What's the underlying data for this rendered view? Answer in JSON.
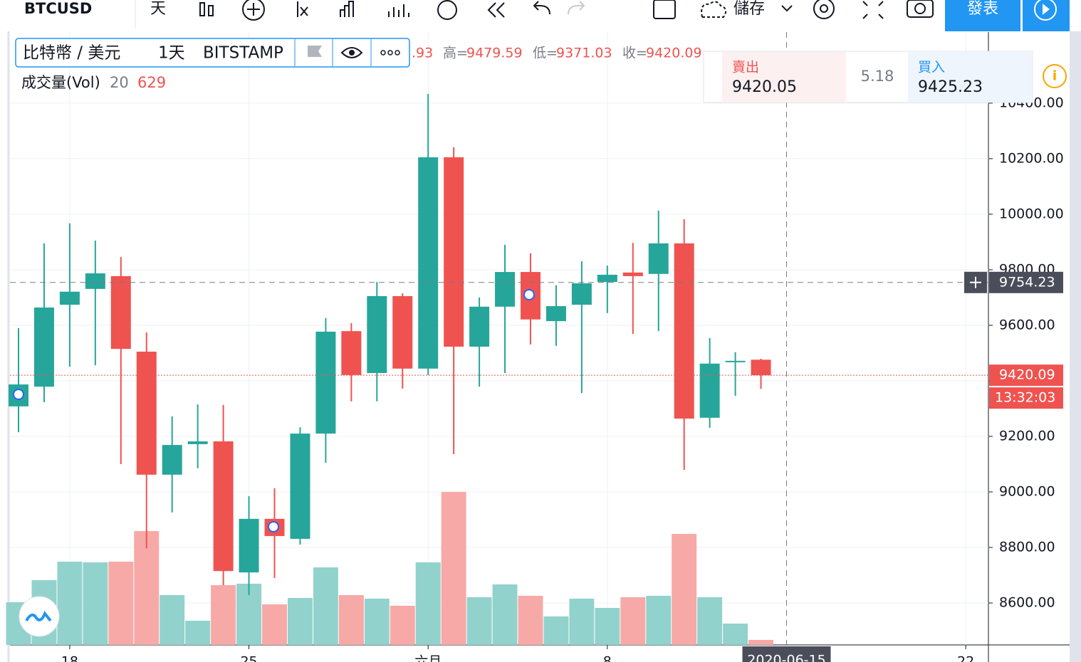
{
  "toolbar": {
    "symbol": "BTCUSD",
    "interval": "天",
    "save": "儲存",
    "publish": "發表"
  },
  "legend": {
    "symbol_title": "比特幣 / 美元",
    "interval": "1天",
    "exchange": "BITSTAMP",
    "open_tail": ".93",
    "high_prefix": "高=",
    "low_prefix": "低=",
    "close_prefix": "收="
  },
  "trade_panel": {
    "sell_label": "賣出",
    "sell": "9420.05",
    "spread": "5.18",
    "buy_label": "買入",
    "buy": "9425.23"
  },
  "chart_data": {
    "type": "candlestick",
    "categories": [
      null,
      null,
      "18",
      null,
      null,
      null,
      null,
      null,
      null,
      "25",
      null,
      null,
      null,
      null,
      null,
      null,
      "六月",
      null,
      null,
      null,
      null,
      null,
      null,
      "8",
      null,
      null,
      null,
      null,
      null,
      null,
      null,
      null,
      null,
      null,
      null,
      null,
      null,
      "22"
    ],
    "open": [
      9308,
      9379,
      9674,
      9731,
      9777,
      9505,
      9062,
      9172,
      9182,
      8710,
      8903,
      8831,
      9210,
      9579,
      9428,
      9705,
      9444,
      10205,
      9523,
      9667,
      9792,
      9615,
      9674,
      9756,
      9790,
      9785,
      9895,
      9267,
      9467,
      9476,
      null,
      null,
      null,
      null,
      null,
      null,
      null,
      null
    ],
    "high": [
      9590,
      9895,
      9967,
      9905,
      9846,
      9574,
      9272,
      9315,
      9313,
      8985,
      9013,
      9233,
      9626,
      9608,
      9756,
      9715,
      10433,
      10241,
      9700,
      9890,
      9859,
      9744,
      9831,
      9815,
      9897,
      10013,
      9982,
      9554,
      9503,
      9479.59,
      null,
      null,
      null,
      null,
      null,
      null,
      null,
      null
    ],
    "low": [
      9215,
      9323,
      9451,
      9456,
      9100,
      8797,
      8926,
      9085,
      8664,
      8628,
      8690,
      8810,
      9105,
      9326,
      9326,
      9372,
      9421,
      9136,
      9379,
      9428,
      9531,
      9526,
      9356,
      9644,
      9569,
      9579,
      9079,
      9231,
      9346,
      9371.03,
      null,
      null,
      null,
      null,
      null,
      null,
      null,
      null
    ],
    "close": [
      9387,
      9664,
      9721,
      9787,
      9515,
      9062,
      9169,
      9182,
      8715,
      8903,
      8841,
      9210,
      9577,
      9421,
      9705,
      9444,
      10205,
      9523,
      9667,
      9792,
      9621,
      9669,
      9751,
      9782,
      9777,
      9895,
      9264,
      9462,
      9472,
      9420.09,
      null,
      null,
      null,
      null,
      null,
      null,
      null,
      null
    ],
    "up_color": "#26a69a",
    "down_color": "#ef5350",
    "volume": {
      "name": "成交量(Vol)",
      "period": 20,
      "axis": "y2",
      "up_color": "#92d2cc",
      "down_color": "#f7a9a7",
      "values": [
        5364,
        8135,
        10460,
        10370,
        10460,
        14300,
        6260,
        3040,
        7510,
        7690,
        5100,
        5900,
        9740,
        6260,
        5810,
        4920,
        10370,
        19220,
        5990,
        7600,
        6170,
        3580,
        5810,
        4650,
        5990,
        6170,
        13950,
        5990,
        2680,
        629,
        null,
        null,
        null,
        null,
        null,
        null,
        null,
        null
      ]
    },
    "ylim": [
      8449,
      10656
    ],
    "yticks": [
      {
        "value": 8600,
        "label": "8600.00"
      },
      {
        "value": 8800,
        "label": "8800.00"
      },
      {
        "value": 9000,
        "label": "9000.00"
      },
      {
        "value": 9200,
        "label": "9200.00"
      },
      {
        "value": 9400,
        "label": "9400.00"
      },
      {
        "value": 9600,
        "label": "9600.00"
      },
      {
        "value": 9800,
        "label": "9800.00"
      },
      {
        "value": 10000,
        "label": "10000.00"
      },
      {
        "value": 10200,
        "label": "10200.00"
      },
      {
        "value": 10400,
        "label": "10400.00"
      }
    ],
    "y2lim": [
      0,
      77000
    ],
    "grid": true,
    "countdown": "13:32:03",
    "crosshair": {
      "price": 9754.23,
      "date": "2020-06-15"
    }
  }
}
